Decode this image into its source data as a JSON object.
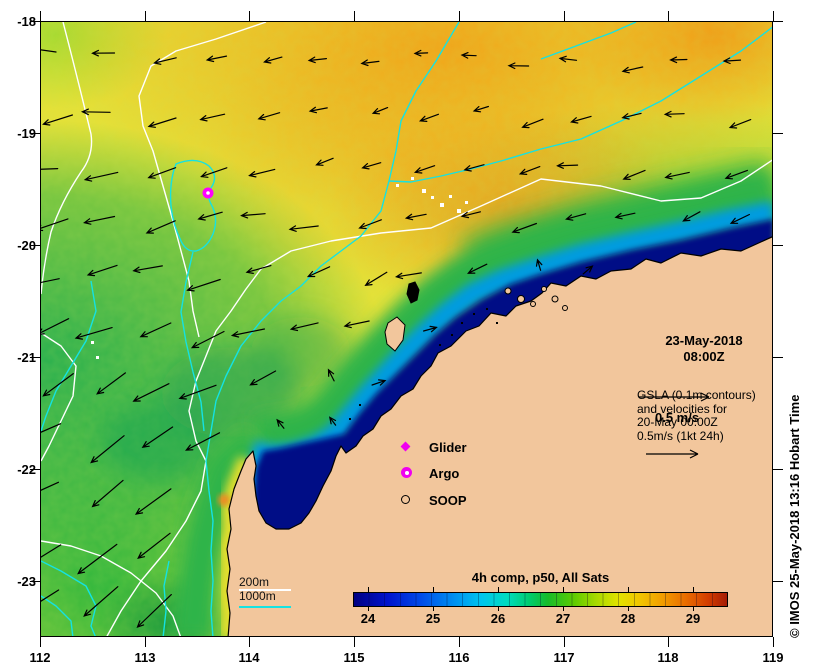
{
  "figure": {
    "datetime": {
      "line1": "23-May-2018",
      "line2": "08:00Z"
    },
    "info": {
      "line1": "GSLA (0.1m contours)",
      "line2": "and velocities for",
      "line3": "20-May 00:00Z",
      "line4": "0.5m/s (1kt 24h)",
      "scale_label": "0.5 m/s"
    },
    "credit": "© IMOS 25-May-2018 13:16 Hobart Time"
  },
  "axes": {
    "x_ticks": [
      "112",
      "113",
      "114",
      "115",
      "116",
      "117",
      "118",
      "119"
    ],
    "y_ticks": [
      "-18",
      "-19",
      "-20",
      "-21",
      "-22",
      "-23"
    ]
  },
  "legend": {
    "items": [
      {
        "id": "glider",
        "label": "Glider",
        "marker": "magenta-diamond"
      },
      {
        "id": "argo",
        "label": "Argo",
        "marker": "magenta-circled-dot"
      },
      {
        "id": "soop",
        "label": "SOOP",
        "marker": "black-open-circle"
      }
    ]
  },
  "depth_legend": {
    "line1": "200m",
    "line2": "1000m"
  },
  "colorbar": {
    "title": "4h comp, p50, All Sats",
    "ticks": [
      "24",
      "25",
      "26",
      "27",
      "28",
      "29"
    ]
  },
  "map": {
    "markers": [
      {
        "type": "argo",
        "lon": 113.6,
        "lat": -19.53
      }
    ],
    "colors": {
      "land": "#f2c69c",
      "cold_water": "#000d86",
      "depth_contour_200m": "#ffffff",
      "depth_contour_1000m": "#15e2e2",
      "marker_magenta": "#ff00ff",
      "warm_field": "#e6e136"
    }
  }
}
